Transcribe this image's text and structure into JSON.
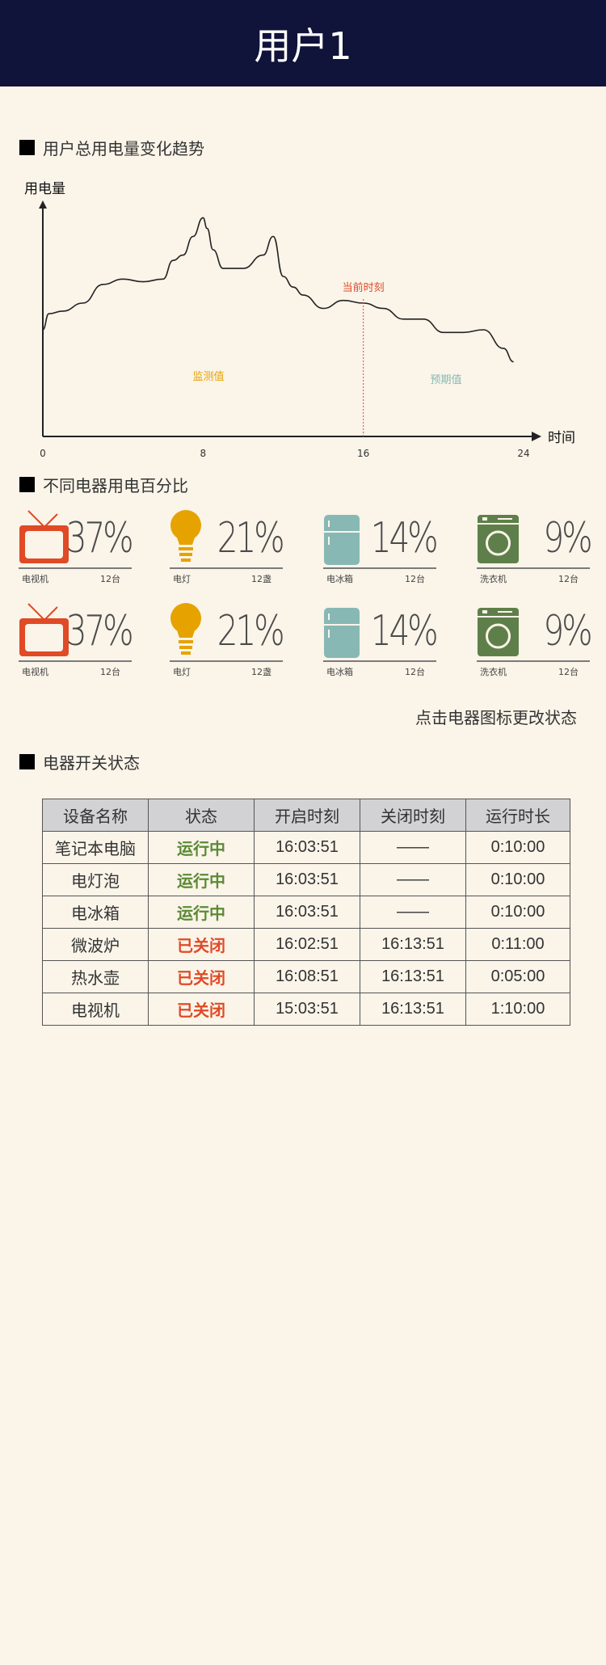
{
  "header": {
    "title": "用户1"
  },
  "sections": {
    "trend_title": "用户总用电量变化趋势",
    "percent_title": "不同电器用电百分比",
    "status_title": "电器开关状态"
  },
  "chart_data": {
    "type": "line",
    "ylabel": "用电量",
    "xlabel": "时间",
    "x_ticks": [
      "0",
      "8",
      "16",
      "24"
    ],
    "xlim": [
      0,
      24
    ],
    "annotations": {
      "now_label": "当前时刻",
      "now_x": 16,
      "monitored_label": "监测值",
      "forecast_label": "预期值"
    },
    "colors": {
      "now": "#e04a26",
      "monitored": "#e6a300",
      "forecast": "#88b8b4",
      "line": "#222222"
    },
    "series": [
      {
        "x": [
          0,
          0.3,
          1,
          2,
          3,
          4,
          5,
          6,
          6.5,
          7,
          7.5,
          8,
          8.2,
          8.5,
          9,
          10,
          11,
          11.5,
          12,
          12.5,
          13,
          14,
          15,
          16,
          17,
          18,
          19,
          20,
          21,
          22,
          23,
          23.5
        ],
        "y": [
          0.4,
          0.46,
          0.47,
          0.5,
          0.57,
          0.59,
          0.58,
          0.59,
          0.66,
          0.68,
          0.75,
          0.82,
          0.78,
          0.7,
          0.63,
          0.63,
          0.68,
          0.75,
          0.6,
          0.56,
          0.53,
          0.48,
          0.51,
          0.5,
          0.48,
          0.44,
          0.44,
          0.39,
          0.39,
          0.4,
          0.33,
          0.28
        ]
      }
    ]
  },
  "appliances_rows": [
    [
      {
        "icon": "tv-icon",
        "name": "电视机",
        "count": "12台",
        "pct": "37%",
        "color": "#e04a26"
      },
      {
        "icon": "bulb-icon",
        "name": "电灯",
        "count": "12盏",
        "pct": "21%",
        "color": "#e6a300"
      },
      {
        "icon": "fridge-icon",
        "name": "电冰箱",
        "count": "12台",
        "pct": "14%",
        "color": "#88b8b4"
      },
      {
        "icon": "washer-icon",
        "name": "洗衣机",
        "count": "12台",
        "pct": "9%",
        "color": "#5f7f4a"
      }
    ],
    [
      {
        "icon": "tv-icon",
        "name": "电视机",
        "count": "12台",
        "pct": "37%",
        "color": "#e04a26"
      },
      {
        "icon": "bulb-icon",
        "name": "电灯",
        "count": "12盏",
        "pct": "21%",
        "color": "#e6a300"
      },
      {
        "icon": "fridge-icon",
        "name": "电冰箱",
        "count": "12台",
        "pct": "14%",
        "color": "#88b8b4"
      },
      {
        "icon": "washer-icon",
        "name": "洗衣机",
        "count": "12台",
        "pct": "9%",
        "color": "#5f7f4a"
      }
    ]
  ],
  "hint": "点击电器图标更改状态",
  "table": {
    "headers": [
      "设备名称",
      "状态",
      "开启时刻",
      "关闭时刻",
      "运行时长"
    ],
    "rows": [
      {
        "name": "笔记本电脑",
        "status": "运行中",
        "on": true,
        "start": "16:03:51",
        "end": "——",
        "duration": "0:10:00"
      },
      {
        "name": "电灯泡",
        "status": "运行中",
        "on": true,
        "start": "16:03:51",
        "end": "——",
        "duration": "0:10:00"
      },
      {
        "name": "电冰箱",
        "status": "运行中",
        "on": true,
        "start": "16:03:51",
        "end": "——",
        "duration": "0:10:00"
      },
      {
        "name": "微波炉",
        "status": "已关闭",
        "on": false,
        "start": "16:02:51",
        "end": "16:13:51",
        "duration": "0:11:00"
      },
      {
        "name": "热水壶",
        "status": "已关闭",
        "on": false,
        "start": "16:08:51",
        "end": "16:13:51",
        "duration": "0:05:00"
      },
      {
        "name": "电视机",
        "status": "已关闭",
        "on": false,
        "start": "15:03:51",
        "end": "16:13:51",
        "duration": "1:10:00"
      }
    ]
  }
}
